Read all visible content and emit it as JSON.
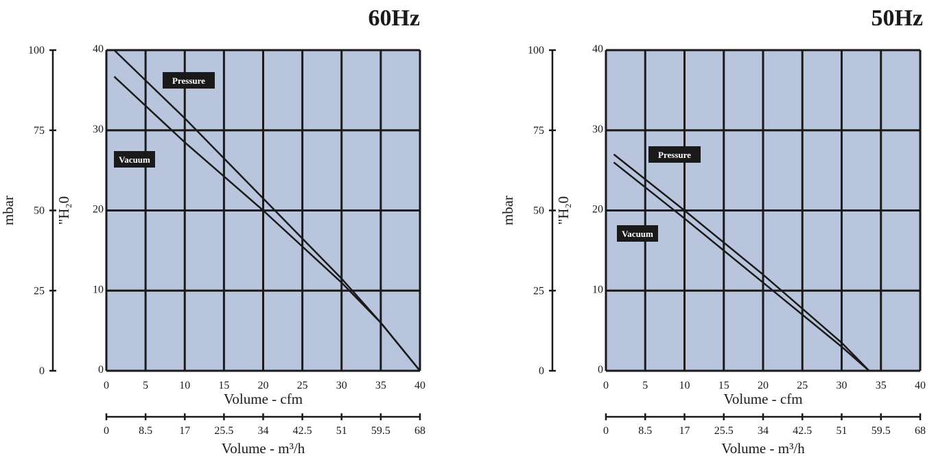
{
  "chart_data": [
    {
      "type": "line",
      "title": "60Hz",
      "xlabel": "Volume - cfm",
      "xlabel2": "Volume - m³/h",
      "ylabel": "\"H₂0",
      "ylabel_secondary": "mbar",
      "xlim": [
        0,
        40
      ],
      "ylim": [
        0,
        40
      ],
      "grid": true,
      "background": "#b9c4dd",
      "x_ticks": [
        "0",
        "5",
        "10",
        "15",
        "20",
        "25",
        "30",
        "35",
        "40"
      ],
      "x2_ticks": [
        "0",
        "8.5",
        "17",
        "25.5",
        "34",
        "42.5",
        "51",
        "59.5",
        "68"
      ],
      "y_ticks": [
        "0",
        "10",
        "20",
        "30",
        "40"
      ],
      "y2_ticks": [
        "0",
        "25",
        "50",
        "75",
        "100"
      ],
      "series": [
        {
          "name": "Pressure",
          "x": [
            1,
            10,
            20,
            30,
            35,
            40
          ],
          "y": [
            40,
            31.5,
            21.5,
            11.5,
            6,
            0
          ]
        },
        {
          "name": "Vacuum",
          "x": [
            1,
            10,
            20,
            30,
            35,
            40
          ],
          "y": [
            36.7,
            28.5,
            20.0,
            11.0,
            6,
            0
          ]
        }
      ]
    },
    {
      "type": "line",
      "title": "50Hz",
      "xlabel": "Volume - cfm",
      "xlabel2": "Volume - m³/h",
      "ylabel": "\"H₂0",
      "ylabel_secondary": "mbar",
      "xlim": [
        0,
        40
      ],
      "ylim": [
        0,
        40
      ],
      "grid": true,
      "background": "#b9c4dd",
      "x_ticks": [
        "0",
        "5",
        "10",
        "15",
        "20",
        "25",
        "30",
        "35",
        "40"
      ],
      "x2_ticks": [
        "0",
        "8.5",
        "17",
        "25.5",
        "34",
        "42.5",
        "51",
        "59.5",
        "68"
      ],
      "y_ticks": [
        "0",
        "10",
        "20",
        "30",
        "40"
      ],
      "y2_ticks": [
        "0",
        "25",
        "50",
        "75",
        "100"
      ],
      "series": [
        {
          "name": "Pressure",
          "x": [
            1,
            10,
            20,
            30,
            33.5
          ],
          "y": [
            27.0,
            20.0,
            12.0,
            3.5,
            0
          ]
        },
        {
          "name": "Vacuum",
          "x": [
            1,
            10,
            20,
            30,
            33.5
          ],
          "y": [
            26.0,
            19.0,
            11.0,
            3.0,
            0
          ]
        }
      ]
    }
  ]
}
